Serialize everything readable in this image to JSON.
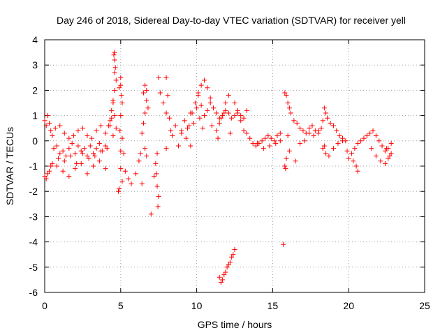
{
  "chart_data": {
    "type": "scatter",
    "title": "Day 246 of 2018, Sidereal Day-to-day VTEC variation (SDTVAR) for receiver yell",
    "xlabel": "GPS time / hours",
    "ylabel": "SDTVAR / TECUs",
    "xlim": [
      0,
      25
    ],
    "ylim": [
      -6,
      4
    ],
    "xticks": [
      "0",
      "5",
      "10",
      "15",
      "20",
      "25"
    ],
    "yticks": [
      "-6",
      "-5",
      "-4",
      "-3",
      "-2",
      "-1",
      "0",
      "1",
      "2",
      "3",
      "4"
    ],
    "grid": true,
    "marker": "+",
    "color": "#ff0000",
    "series": [
      {
        "name": "SDTVAR",
        "x": [
          0.0,
          0.1,
          0.2,
          0.3,
          0.4,
          0.5,
          0.0,
          0.1,
          0.2,
          0.3,
          0.4,
          0.5,
          0.6,
          0.8,
          1.0,
          1.2,
          1.4,
          1.6,
          1.8,
          2.0,
          2.2,
          2.4,
          2.6,
          2.8,
          3.0,
          3.2,
          3.4,
          3.6,
          3.8,
          4.0,
          0.7,
          1.0,
          1.3,
          1.6,
          1.9,
          2.2,
          2.5,
          2.8,
          3.1,
          3.4,
          3.7,
          4.0,
          0.8,
          1.2,
          1.6,
          2.0,
          2.4,
          2.8,
          3.2,
          3.6,
          4.0,
          0.9,
          1.3,
          1.7,
          2.1,
          2.5,
          2.9,
          3.3,
          3.7,
          4.1,
          4.2,
          4.3,
          4.4,
          4.5,
          4.55,
          4.6,
          4.6,
          4.65,
          4.7,
          4.6,
          4.5,
          4.4,
          4.3,
          4.5,
          4.6,
          4.7,
          4.6,
          5.0,
          5.05,
          5.1,
          5.0,
          4.95,
          5.0,
          5.0,
          5.1,
          4.9,
          4.85,
          5.0,
          4.9,
          5.1,
          5.2,
          5.3,
          5.5,
          5.7,
          6.0,
          6.2,
          6.3,
          6.4,
          6.5,
          6.6,
          6.7,
          6.5,
          6.6,
          6.7,
          6.8,
          6.6,
          6.7,
          6.4,
          7.0,
          7.2,
          7.4,
          7.45,
          7.5,
          7.4,
          7.35,
          7.3,
          7.5,
          7.6,
          7.8,
          8.0,
          8.1,
          8.0,
          8.2,
          8.3,
          8.0,
          8.4,
          8.6,
          8.8,
          9.0,
          9.2,
          9.4,
          9.6,
          9.8,
          9.0,
          9.3,
          9.6,
          9.5,
          9.7,
          9.9,
          10.1,
          10.3,
          10.5,
          10.7,
          10.9,
          10.0,
          10.2,
          10.4,
          10.1,
          10.3,
          10.5,
          10.7,
          10.9,
          11.1,
          11.3,
          11.5,
          11.7,
          11.9,
          12.1,
          12.3,
          12.5,
          12.7,
          12.9,
          13.1,
          13.3,
          11.0,
          11.3,
          11.6,
          11.9,
          12.2,
          11.5,
          11.8,
          12.1,
          12.5,
          12.7,
          12.9,
          13.1,
          13.3,
          13.5,
          13.7,
          13.9,
          14.1,
          14.3,
          14.5,
          14.7,
          14.9,
          15.1,
          15.3,
          15.5,
          14.0,
          14.4,
          14.8,
          15.2,
          15.5,
          11.4,
          11.5,
          11.6,
          11.7,
          11.8,
          11.9,
          12.0,
          12.1,
          12.2,
          12.3,
          12.4,
          12.5,
          15.7,
          15.8,
          15.9,
          16.0,
          16.1,
          16.2,
          16.4,
          16.6,
          16.8,
          17.0,
          17.2,
          17.4,
          17.6,
          17.8,
          18.0,
          16.0,
          16.1,
          15.9,
          15.8,
          15.85,
          16.5,
          16.8,
          17.1,
          17.4,
          17.7,
          18.0,
          18.2,
          18.3,
          18.4,
          18.5,
          18.6,
          18.8,
          19.0,
          19.2,
          19.4,
          19.6,
          19.8,
          18.3,
          18.4,
          18.5,
          18.7,
          19.0,
          19.3,
          19.6,
          19.9,
          20.0,
          20.2,
          20.4,
          20.6,
          20.8,
          21.0,
          20.3,
          20.5,
          20.6,
          21.2,
          21.4,
          21.6,
          21.8,
          22.0,
          22.2,
          22.4,
          22.6,
          22.8,
          21.5,
          21.8,
          22.1,
          22.4,
          22.6,
          22.8,
          22.7,
          22.5
        ],
        "y": [
          -1.4,
          -1.5,
          -1.3,
          -1.2,
          -1.0,
          -0.9,
          0.8,
          0.6,
          1.0,
          0.7,
          0.4,
          0.2,
          -0.3,
          -0.2,
          -0.5,
          -0.4,
          -0.6,
          -0.3,
          -0.1,
          -0.5,
          -0.2,
          -0.4,
          -0.3,
          -0.6,
          -0.2,
          -0.5,
          -0.3,
          -0.1,
          -0.4,
          -0.2,
          0.5,
          0.6,
          0.3,
          0.1,
          0.2,
          0.4,
          0.5,
          0.2,
          0.1,
          0.4,
          0.6,
          0.3,
          -1.0,
          -1.2,
          -1.4,
          -1.1,
          -0.9,
          -1.3,
          -1.0,
          -0.8,
          -1.1,
          -0.7,
          -0.8,
          -0.6,
          -0.9,
          -0.5,
          -0.7,
          -0.6,
          -0.4,
          -0.3,
          0.6,
          0.8,
          1.2,
          1.6,
          3.4,
          3.5,
          3.2,
          2.9,
          2.4,
          2.0,
          1.5,
          0.9,
          0.6,
          0.2,
          1.0,
          0.5,
          2.7,
          2.2,
          1.8,
          1.5,
          1.0,
          0.4,
          -0.4,
          -1.1,
          -1.6,
          -1.9,
          -2.0,
          2.5,
          2.1,
          0.1,
          -0.5,
          -1.2,
          -1.5,
          -1.7,
          -1.3,
          -0.8,
          -0.5,
          0.3,
          0.7,
          1.1,
          1.6,
          1.9,
          2.2,
          2.0,
          1.3,
          -0.3,
          -0.6,
          -1.7,
          -2.9,
          -1.4,
          -0.5,
          -2.6,
          -2.2,
          -1.8,
          -1.3,
          -0.9,
          2.5,
          1.9,
          1.5,
          1.1,
          1.8,
          2.5,
          0.9,
          0.4,
          -0.3,
          0.2,
          0.6,
          -0.2,
          0.3,
          0.8,
          0.5,
          1.1,
          0.7,
          0.4,
          0.1,
          -0.2,
          0.6,
          1.1,
          1.5,
          1.9,
          2.2,
          2.4,
          2.1,
          1.7,
          1.3,
          0.9,
          0.5,
          1.8,
          1.4,
          1.0,
          1.2,
          1.5,
          1.3,
          1.1,
          0.9,
          1.0,
          1.2,
          1.1,
          0.9,
          1.0,
          1.1,
          1.0,
          0.9,
          1.2,
          0.6,
          0.4,
          0.9,
          1.5,
          0.3,
          0.7,
          1.1,
          1.8,
          1.5,
          1.2,
          0.8,
          0.4,
          0.3,
          0.1,
          -0.1,
          -0.2,
          -0.1,
          0.0,
          0.1,
          0.2,
          0.1,
          0.0,
          0.2,
          0.0,
          -0.1,
          -0.3,
          -0.2,
          -0.1,
          0.3,
          0.1,
          -5.4,
          -5.6,
          -5.5,
          -5.3,
          -5.2,
          -5.0,
          -4.9,
          -4.8,
          -4.6,
          -4.5,
          -4.3,
          -4.1,
          1.9,
          1.8,
          1.5,
          1.3,
          1.1,
          0.8,
          0.7,
          0.5,
          0.4,
          0.3,
          0.5,
          0.6,
          0.4,
          0.3,
          0.2,
          -0.4,
          -0.7,
          -1.0,
          -1.1,
          -0.8,
          -0.1,
          0.0,
          0.3,
          0.2,
          0.4,
          0.5,
          0.8,
          1.3,
          1.1,
          0.9,
          0.7,
          0.6,
          0.4,
          0.2,
          0.1,
          0.0,
          -0.3,
          -0.2,
          -0.5,
          -0.6,
          -0.3,
          -0.1,
          0.0,
          -0.4,
          -0.7,
          -0.5,
          -0.3,
          -0.1,
          0.0,
          0.1,
          -0.8,
          -1.0,
          -1.2,
          0.2,
          0.3,
          0.4,
          0.2,
          0.0,
          -0.2,
          -0.4,
          -0.3,
          -0.1,
          -0.3,
          -0.6,
          -0.8,
          -0.9,
          -0.7,
          -0.5,
          -0.6,
          -0.3
        ]
      }
    ]
  }
}
